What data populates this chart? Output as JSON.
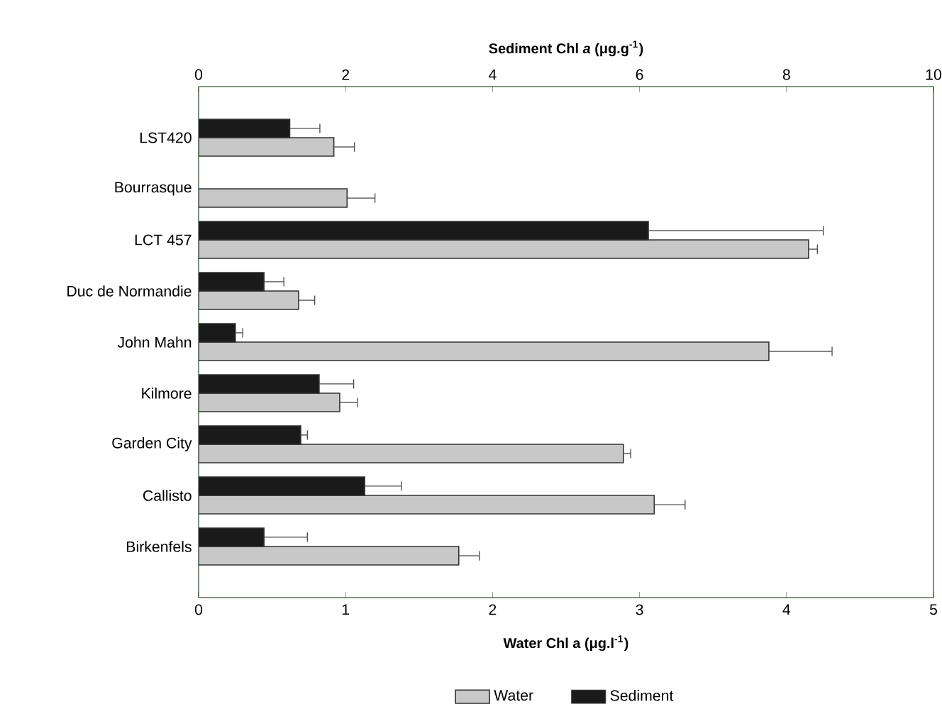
{
  "chart_data": {
    "type": "bar",
    "orientation": "horizontal",
    "xlabel": "Water Chl a (μg.l$^{-1}$)",
    "x2label": "Sediment Chl *a* (μg.g$^{-1}$)",
    "categories": [
      "LST420",
      "Bourrasque",
      "LCT 457",
      "Duc de Normandie",
      "John Mahn",
      "Kilmore",
      "Garden City",
      "Callisto",
      "Birkenfels"
    ],
    "series": [
      {
        "name": "Water",
        "color": "#c8c8c8",
        "values": [
          0.92,
          1.01,
          4.15,
          0.68,
          3.88,
          0.96,
          2.89,
          3.1,
          1.77
        ],
        "errors": [
          [
            0.92,
            1.06
          ],
          [
            1.01,
            1.2
          ],
          [
            4.15,
            4.21
          ],
          [
            0.68,
            0.79
          ],
          [
            3.88,
            4.31
          ],
          [
            0.96,
            1.08
          ],
          [
            2.89,
            2.94
          ],
          [
            3.1,
            3.31
          ],
          [
            1.77,
            1.91
          ]
        ]
      },
      {
        "name": "Sediment",
        "color": "#1a1a1a",
        "axis": "x2",
        "values": [
          1.24,
          null,
          6.12,
          0.89,
          0.5,
          1.64,
          1.39,
          2.26,
          0.89
        ],
        "errors": [
          [
            1.24,
            1.65
          ],
          null,
          [
            6.12,
            8.5
          ],
          [
            0.89,
            1.16
          ],
          [
            0.5,
            0.6
          ],
          [
            1.64,
            2.11
          ],
          [
            1.39,
            1.48
          ],
          [
            2.26,
            2.76
          ],
          [
            0.89,
            1.48
          ]
        ]
      }
    ],
    "xlim": [
      0,
      5
    ],
    "xticks": [
      0,
      1,
      2,
      3,
      4,
      5
    ],
    "x2lim": [
      0,
      10
    ],
    "x2ticks": [
      0,
      2,
      4,
      6,
      8,
      10
    ],
    "legend": "bottom",
    "grid": false
  }
}
